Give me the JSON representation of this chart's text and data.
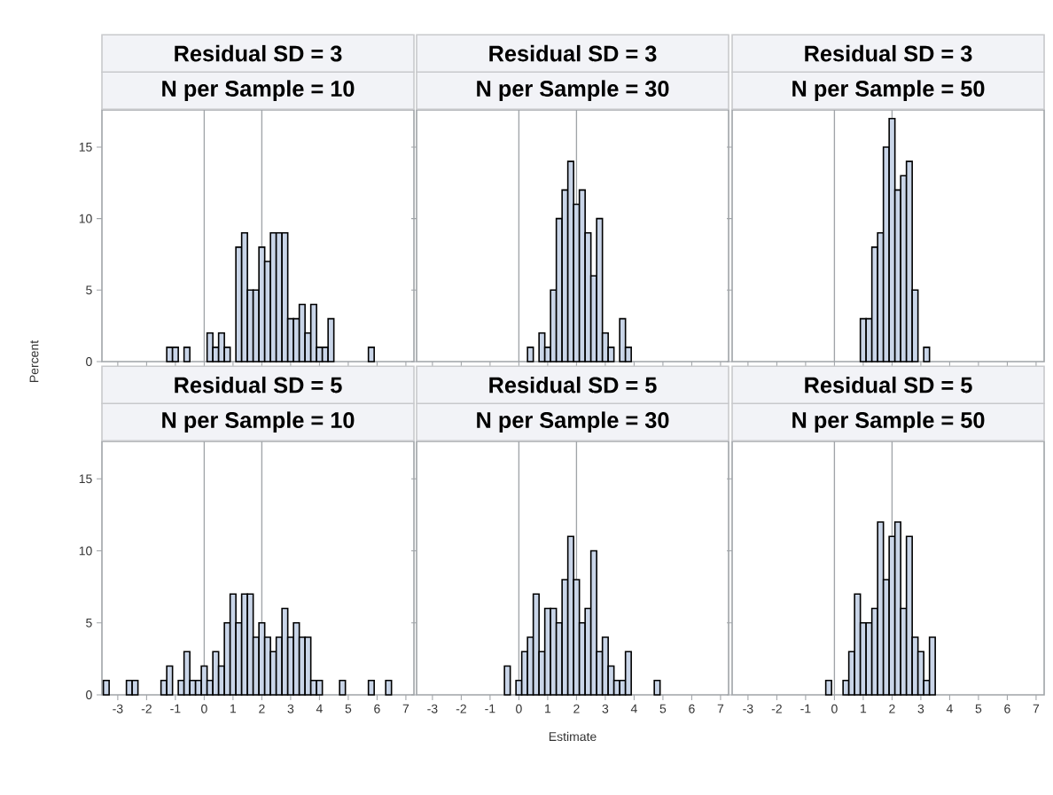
{
  "chart_data": [
    {
      "type": "histogram",
      "title": "Residual SD = 3",
      "subtitle": "N per Sample = 10",
      "ylabel": "Percent",
      "tick_labels": "y",
      "color": "#c9d5e8",
      "bins": [
        -3.5,
        -3.3,
        -3.1,
        -2.9,
        -2.7,
        -2.5,
        -2.3,
        -2.1,
        -1.9,
        -1.7,
        -1.5,
        -1.3,
        -1.1,
        -0.9,
        -0.7,
        -0.5,
        -0.3,
        -0.1,
        0.1,
        0.3,
        0.5,
        0.7,
        0.9,
        1.1,
        1.3,
        1.5,
        1.7,
        1.9,
        2.1,
        2.3,
        2.5,
        2.7,
        2.9,
        3.1,
        3.3,
        3.5,
        3.7,
        3.9,
        4.1,
        4.3,
        4.5,
        4.7,
        4.9,
        5.1,
        5.3,
        5.5,
        5.7,
        5.9,
        6.1,
        6.3,
        6.5,
        6.7
      ],
      "values": [
        0,
        0,
        0,
        0,
        0,
        0,
        0,
        0,
        0,
        0,
        0,
        1,
        1,
        0,
        1,
        0,
        0,
        0,
        2,
        1,
        2,
        1,
        0,
        8,
        9,
        5,
        5,
        8,
        7,
        9,
        9,
        9,
        3,
        3,
        4,
        2,
        4,
        1,
        1,
        3,
        0,
        0,
        0,
        0,
        0,
        0,
        1,
        0,
        0,
        0,
        0
      ],
      "xlim": [
        -3.55,
        7.28
      ],
      "xticks": [
        -3,
        -2,
        -1,
        0,
        1,
        2,
        3,
        4,
        5,
        6,
        7
      ],
      "ylim": [
        0,
        17.6
      ],
      "yticks": [
        0,
        5,
        10,
        15
      ],
      "ref_lines": [
        {
          "axis": "x",
          "value": 0,
          "color": "#a0a4a8"
        },
        {
          "axis": "x",
          "value": 2,
          "color": "#a0a4a8"
        }
      ]
    },
    {
      "type": "histogram",
      "title": "Residual SD = 3",
      "subtitle": "N per Sample = 30",
      "tick_labels": false,
      "color": "#c9d5e8",
      "bins": [
        -3.5,
        -3.3,
        -3.1,
        -2.9,
        -2.7,
        -2.5,
        -2.3,
        -2.1,
        -1.9,
        -1.7,
        -1.5,
        -1.3,
        -1.1,
        -0.9,
        -0.7,
        -0.5,
        -0.3,
        -0.1,
        0.1,
        0.3,
        0.5,
        0.7,
        0.9,
        1.1,
        1.3,
        1.5,
        1.7,
        1.9,
        2.1,
        2.3,
        2.5,
        2.7,
        2.9,
        3.1,
        3.3,
        3.5,
        3.7,
        3.9,
        4.1,
        4.3,
        4.5,
        4.7,
        4.9,
        5.1,
        5.3,
        5.5,
        5.7,
        5.9,
        6.1,
        6.3,
        6.5,
        6.7
      ],
      "values": [
        0,
        0,
        0,
        0,
        0,
        0,
        0,
        0,
        0,
        0,
        0,
        0,
        0,
        0,
        0,
        0,
        0,
        0,
        0,
        1,
        0,
        2,
        1,
        5,
        10,
        12,
        14,
        11,
        12,
        9,
        6,
        10,
        2,
        1,
        0,
        3,
        1,
        0,
        0,
        0,
        0,
        0,
        0,
        0,
        0,
        0,
        0,
        0,
        0,
        0,
        0
      ],
      "xlim": [
        -3.55,
        7.28
      ],
      "xticks": [
        -3,
        -2,
        -1,
        0,
        1,
        2,
        3,
        4,
        5,
        6,
        7
      ],
      "ylim": [
        0,
        17.6
      ],
      "yticks": [
        0,
        5,
        10,
        15
      ],
      "ref_lines": [
        {
          "axis": "x",
          "value": 0,
          "color": "#a0a4a8"
        },
        {
          "axis": "x",
          "value": 2,
          "color": "#a0a4a8"
        }
      ]
    },
    {
      "type": "histogram",
      "title": "Residual SD = 3",
      "subtitle": "N per Sample = 50",
      "tick_labels": false,
      "color": "#c9d5e8",
      "bins": [
        -3.5,
        -3.3,
        -3.1,
        -2.9,
        -2.7,
        -2.5,
        -2.3,
        -2.1,
        -1.9,
        -1.7,
        -1.5,
        -1.3,
        -1.1,
        -0.9,
        -0.7,
        -0.5,
        -0.3,
        -0.1,
        0.1,
        0.3,
        0.5,
        0.7,
        0.9,
        1.1,
        1.3,
        1.5,
        1.7,
        1.9,
        2.1,
        2.3,
        2.5,
        2.7,
        2.9,
        3.1,
        3.3,
        3.5,
        3.7,
        3.9,
        4.1,
        4.3,
        4.5,
        4.7,
        4.9,
        5.1,
        5.3,
        5.5,
        5.7,
        5.9,
        6.1,
        6.3,
        6.5,
        6.7
      ],
      "values": [
        0,
        0,
        0,
        0,
        0,
        0,
        0,
        0,
        0,
        0,
        0,
        0,
        0,
        0,
        0,
        0,
        0,
        0,
        0,
        0,
        0,
        0,
        3,
        3,
        8,
        9,
        15,
        17,
        12,
        13,
        14,
        5,
        0,
        1,
        0,
        0,
        0,
        0,
        0,
        0,
        0,
        0,
        0,
        0,
        0,
        0,
        0,
        0,
        0,
        0,
        0
      ],
      "xlim": [
        -3.55,
        7.28
      ],
      "xticks": [
        -3,
        -2,
        -1,
        0,
        1,
        2,
        3,
        4,
        5,
        6,
        7
      ],
      "ylim": [
        0,
        17.6
      ],
      "yticks": [
        0,
        5,
        10,
        15
      ],
      "ref_lines": [
        {
          "axis": "x",
          "value": 0,
          "color": "#a0a4a8"
        },
        {
          "axis": "x",
          "value": 2,
          "color": "#a0a4a8"
        }
      ]
    },
    {
      "type": "histogram",
      "title": "Residual SD = 5",
      "subtitle": "N per Sample = 10",
      "color": "#c9d5e8",
      "bins": [
        -3.5,
        -3.3,
        -3.1,
        -2.9,
        -2.7,
        -2.5,
        -2.3,
        -2.1,
        -1.9,
        -1.7,
        -1.5,
        -1.3,
        -1.1,
        -0.9,
        -0.7,
        -0.5,
        -0.3,
        -0.1,
        0.1,
        0.3,
        0.5,
        0.7,
        0.9,
        1.1,
        1.3,
        1.5,
        1.7,
        1.9,
        2.1,
        2.3,
        2.5,
        2.7,
        2.9,
        3.1,
        3.3,
        3.5,
        3.7,
        3.9,
        4.1,
        4.3,
        4.5,
        4.7,
        4.9,
        5.1,
        5.3,
        5.5,
        5.7,
        5.9,
        6.1,
        6.3,
        6.5,
        6.7
      ],
      "values": [
        1,
        0,
        0,
        0,
        1,
        1,
        0,
        0,
        0,
        0,
        1,
        2,
        0,
        1,
        3,
        1,
        1,
        2,
        1,
        3,
        2,
        5,
        7,
        5,
        7,
        7,
        4,
        5,
        4,
        3,
        4,
        6,
        4,
        5,
        4,
        4,
        1,
        1,
        0,
        0,
        0,
        1,
        0,
        0,
        0,
        0,
        1,
        0,
        0,
        1,
        0
      ],
      "xlim": [
        -3.55,
        7.28
      ],
      "xticks": [
        -3,
        -2,
        -1,
        0,
        1,
        2,
        3,
        4,
        5,
        6,
        7
      ],
      "ylim": [
        0,
        17.6
      ],
      "yticks": [
        0,
        5,
        10,
        15
      ],
      "ref_lines": [
        {
          "axis": "x",
          "value": 0,
          "color": "#a0a4a8"
        },
        {
          "axis": "x",
          "value": 2,
          "color": "#a0a4a8"
        }
      ]
    },
    {
      "type": "histogram",
      "title": "Residual SD = 5",
      "subtitle": "N per Sample = 30",
      "xlabel": "Estimate",
      "tick_labels": "x",
      "color": "#c9d5e8",
      "bins": [
        -3.5,
        -3.3,
        -3.1,
        -2.9,
        -2.7,
        -2.5,
        -2.3,
        -2.1,
        -1.9,
        -1.7,
        -1.5,
        -1.3,
        -1.1,
        -0.9,
        -0.7,
        -0.5,
        -0.3,
        -0.1,
        0.1,
        0.3,
        0.5,
        0.7,
        0.9,
        1.1,
        1.3,
        1.5,
        1.7,
        1.9,
        2.1,
        2.3,
        2.5,
        2.7,
        2.9,
        3.1,
        3.3,
        3.5,
        3.7,
        3.9,
        4.1,
        4.3,
        4.5,
        4.7,
        4.9,
        5.1,
        5.3,
        5.5,
        5.7,
        5.9,
        6.1,
        6.3,
        6.5,
        6.7
      ],
      "values": [
        0,
        0,
        0,
        0,
        0,
        0,
        0,
        0,
        0,
        0,
        0,
        0,
        0,
        0,
        0,
        2,
        0,
        1,
        3,
        4,
        7,
        3,
        6,
        6,
        5,
        8,
        11,
        8,
        5,
        6,
        10,
        3,
        4,
        2,
        1,
        1,
        3,
        0,
        0,
        0,
        0,
        1,
        0,
        0,
        0,
        0,
        0,
        0,
        0,
        0,
        0
      ],
      "xlim": [
        -3.55,
        7.28
      ],
      "xticks": [
        -3,
        -2,
        -1,
        0,
        1,
        2,
        3,
        4,
        5,
        6,
        7
      ],
      "ylim": [
        0,
        17.6
      ],
      "yticks": [
        0,
        5,
        10,
        15
      ],
      "ref_lines": [
        {
          "axis": "x",
          "value": 0,
          "color": "#a0a4a8"
        },
        {
          "axis": "x",
          "value": 2,
          "color": "#a0a4a8"
        }
      ]
    },
    {
      "type": "histogram",
      "title": "Residual SD = 5",
      "subtitle": "N per Sample = 50",
      "tick_labels": "x",
      "color": "#c9d5e8",
      "bins": [
        -3.5,
        -3.3,
        -3.1,
        -2.9,
        -2.7,
        -2.5,
        -2.3,
        -2.1,
        -1.9,
        -1.7,
        -1.5,
        -1.3,
        -1.1,
        -0.9,
        -0.7,
        -0.5,
        -0.3,
        -0.1,
        0.1,
        0.3,
        0.5,
        0.7,
        0.9,
        1.1,
        1.3,
        1.5,
        1.7,
        1.9,
        2.1,
        2.3,
        2.5,
        2.7,
        2.9,
        3.1,
        3.3,
        3.5,
        3.7,
        3.9,
        4.1,
        4.3,
        4.5,
        4.7,
        4.9,
        5.1,
        5.3,
        5.5,
        5.7,
        5.9,
        6.1,
        6.3,
        6.5,
        6.7
      ],
      "values": [
        0,
        0,
        0,
        0,
        0,
        0,
        0,
        0,
        0,
        0,
        0,
        0,
        0,
        0,
        0,
        0,
        1,
        0,
        0,
        1,
        3,
        7,
        5,
        5,
        6,
        12,
        8,
        11,
        12,
        6,
        11,
        4,
        3,
        1,
        4,
        0,
        0,
        0,
        0,
        0,
        0,
        0,
        0,
        0,
        0,
        0,
        0,
        0,
        0,
        0,
        0
      ],
      "xlim": [
        -3.55,
        7.28
      ],
      "xticks": [
        -3,
        -2,
        -1,
        0,
        1,
        2,
        3,
        4,
        5,
        6,
        7
      ],
      "ylim": [
        0,
        17.6
      ],
      "yticks": [
        0,
        5,
        10,
        15
      ],
      "ref_lines": [
        {
          "axis": "x",
          "value": 0,
          "color": "#a0a4a8"
        },
        {
          "axis": "x",
          "value": 2,
          "color": "#a0a4a8"
        }
      ]
    }
  ]
}
